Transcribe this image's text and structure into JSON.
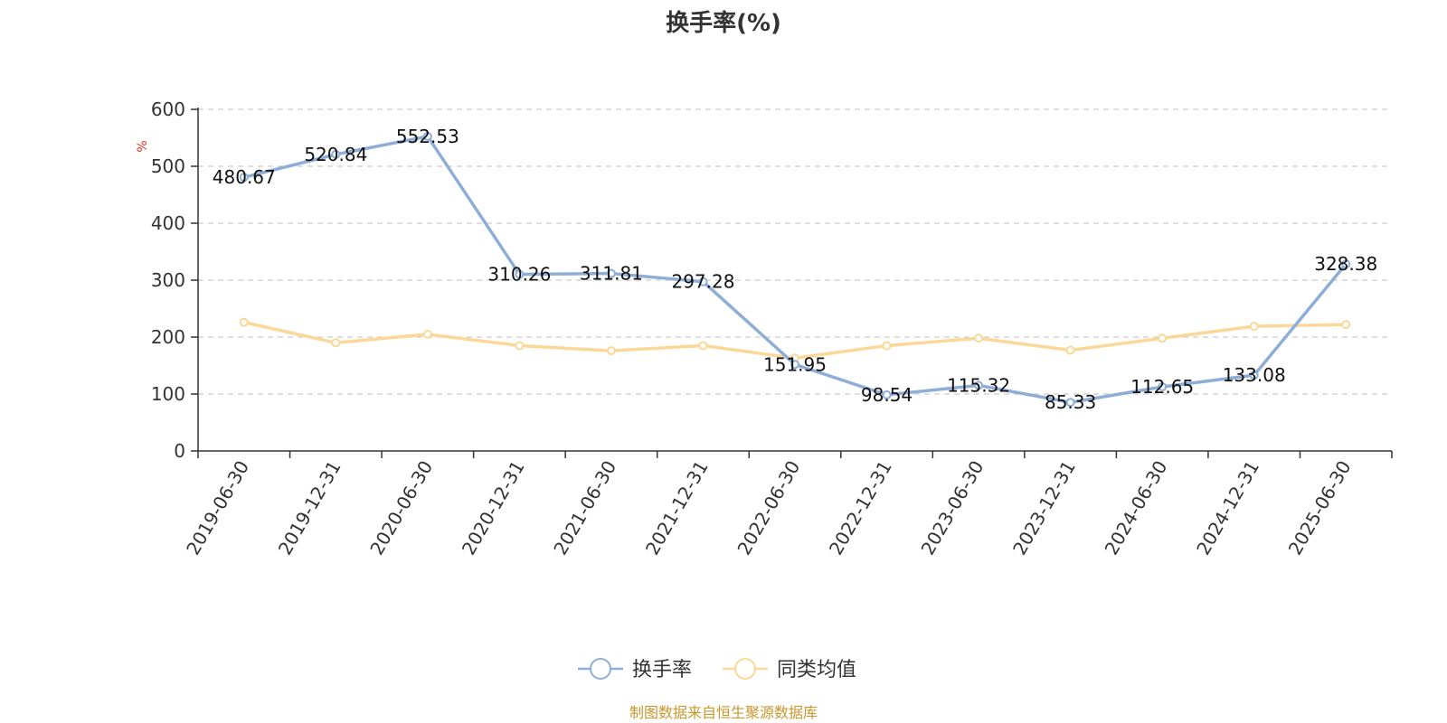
{
  "chart_data": {
    "type": "line",
    "title": "换手率(%)",
    "ylabel": "%",
    "ylim": [
      0,
      600
    ],
    "yticks": [
      0,
      100,
      200,
      300,
      400,
      500,
      600
    ],
    "grid": true,
    "legend_position": "bottom",
    "categories": [
      "2019-06-30",
      "2019-12-31",
      "2020-06-30",
      "2020-12-31",
      "2021-06-30",
      "2021-12-31",
      "2022-06-30",
      "2022-12-31",
      "2023-06-30",
      "2023-12-31",
      "2024-06-30",
      "2024-12-31",
      "2025-06-30"
    ],
    "series": [
      {
        "name": "换手率",
        "color": "#8eaed8",
        "show_labels": true,
        "values": [
          480.67,
          520.84,
          552.53,
          310.26,
          311.81,
          297.28,
          151.95,
          98.54,
          115.32,
          85.33,
          112.65,
          133.08,
          328.38
        ]
      },
      {
        "name": "同类均值",
        "color": "#fcd898",
        "show_labels": false,
        "values": [
          226,
          190,
          205,
          185,
          176,
          185,
          163,
          185,
          198,
          177,
          198,
          219,
          222
        ]
      }
    ]
  },
  "footer": "制图数据来自恒生聚源数据库"
}
